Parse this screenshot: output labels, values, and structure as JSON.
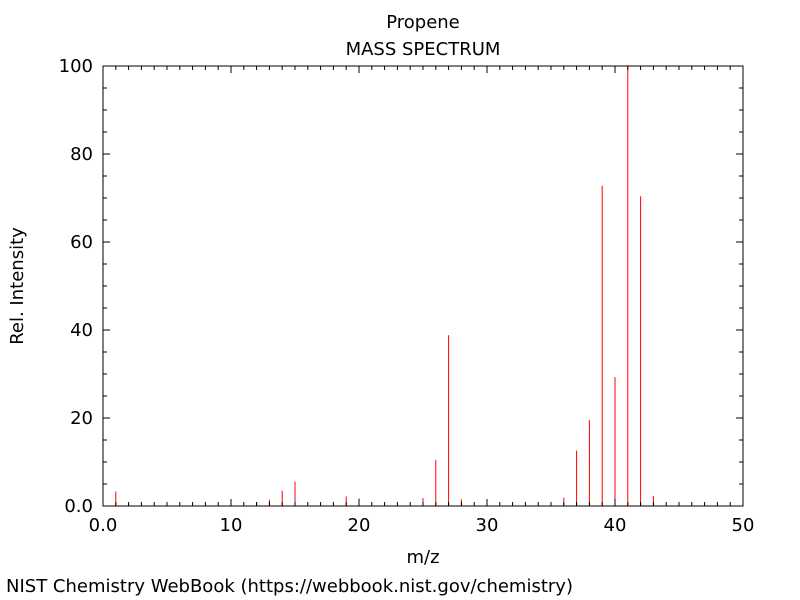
{
  "chart_data": {
    "type": "bar",
    "title": "Propene",
    "subtitle": "MASS SPECTRUM",
    "xlabel": "m/z",
    "ylabel": "Rel. Intensity",
    "xlim": [
      0,
      50
    ],
    "ylim": [
      0,
      100
    ],
    "x_ticks": [
      "0.0",
      "10",
      "20",
      "30",
      "40",
      "50"
    ],
    "y_ticks": [
      "0.0",
      "20",
      "40",
      "60",
      "80",
      "100"
    ],
    "grid": false,
    "bar_color": "#ff0000",
    "peaks": [
      {
        "mz": 1,
        "intensity": 3.3
      },
      {
        "mz": 2,
        "intensity": 0.4
      },
      {
        "mz": 12,
        "intensity": 0.9
      },
      {
        "mz": 13,
        "intensity": 1.4
      },
      {
        "mz": 14,
        "intensity": 3.5
      },
      {
        "mz": 15,
        "intensity": 5.5
      },
      {
        "mz": 19,
        "intensity": 2.2
      },
      {
        "mz": 20,
        "intensity": 1.7
      },
      {
        "mz": 25,
        "intensity": 1.8
      },
      {
        "mz": 26,
        "intensity": 10.5
      },
      {
        "mz": 27,
        "intensity": 38.8
      },
      {
        "mz": 28,
        "intensity": 1.5
      },
      {
        "mz": 36,
        "intensity": 1.9
      },
      {
        "mz": 37,
        "intensity": 12.6
      },
      {
        "mz": 38,
        "intensity": 19.5
      },
      {
        "mz": 39,
        "intensity": 72.8
      },
      {
        "mz": 40,
        "intensity": 29.3
      },
      {
        "mz": 41,
        "intensity": 100
      },
      {
        "mz": 42,
        "intensity": 70.4
      },
      {
        "mz": 43,
        "intensity": 2.3
      }
    ]
  },
  "footer": {
    "text": "NIST Chemistry WebBook (https://webbook.nist.gov/chemistry)"
  }
}
